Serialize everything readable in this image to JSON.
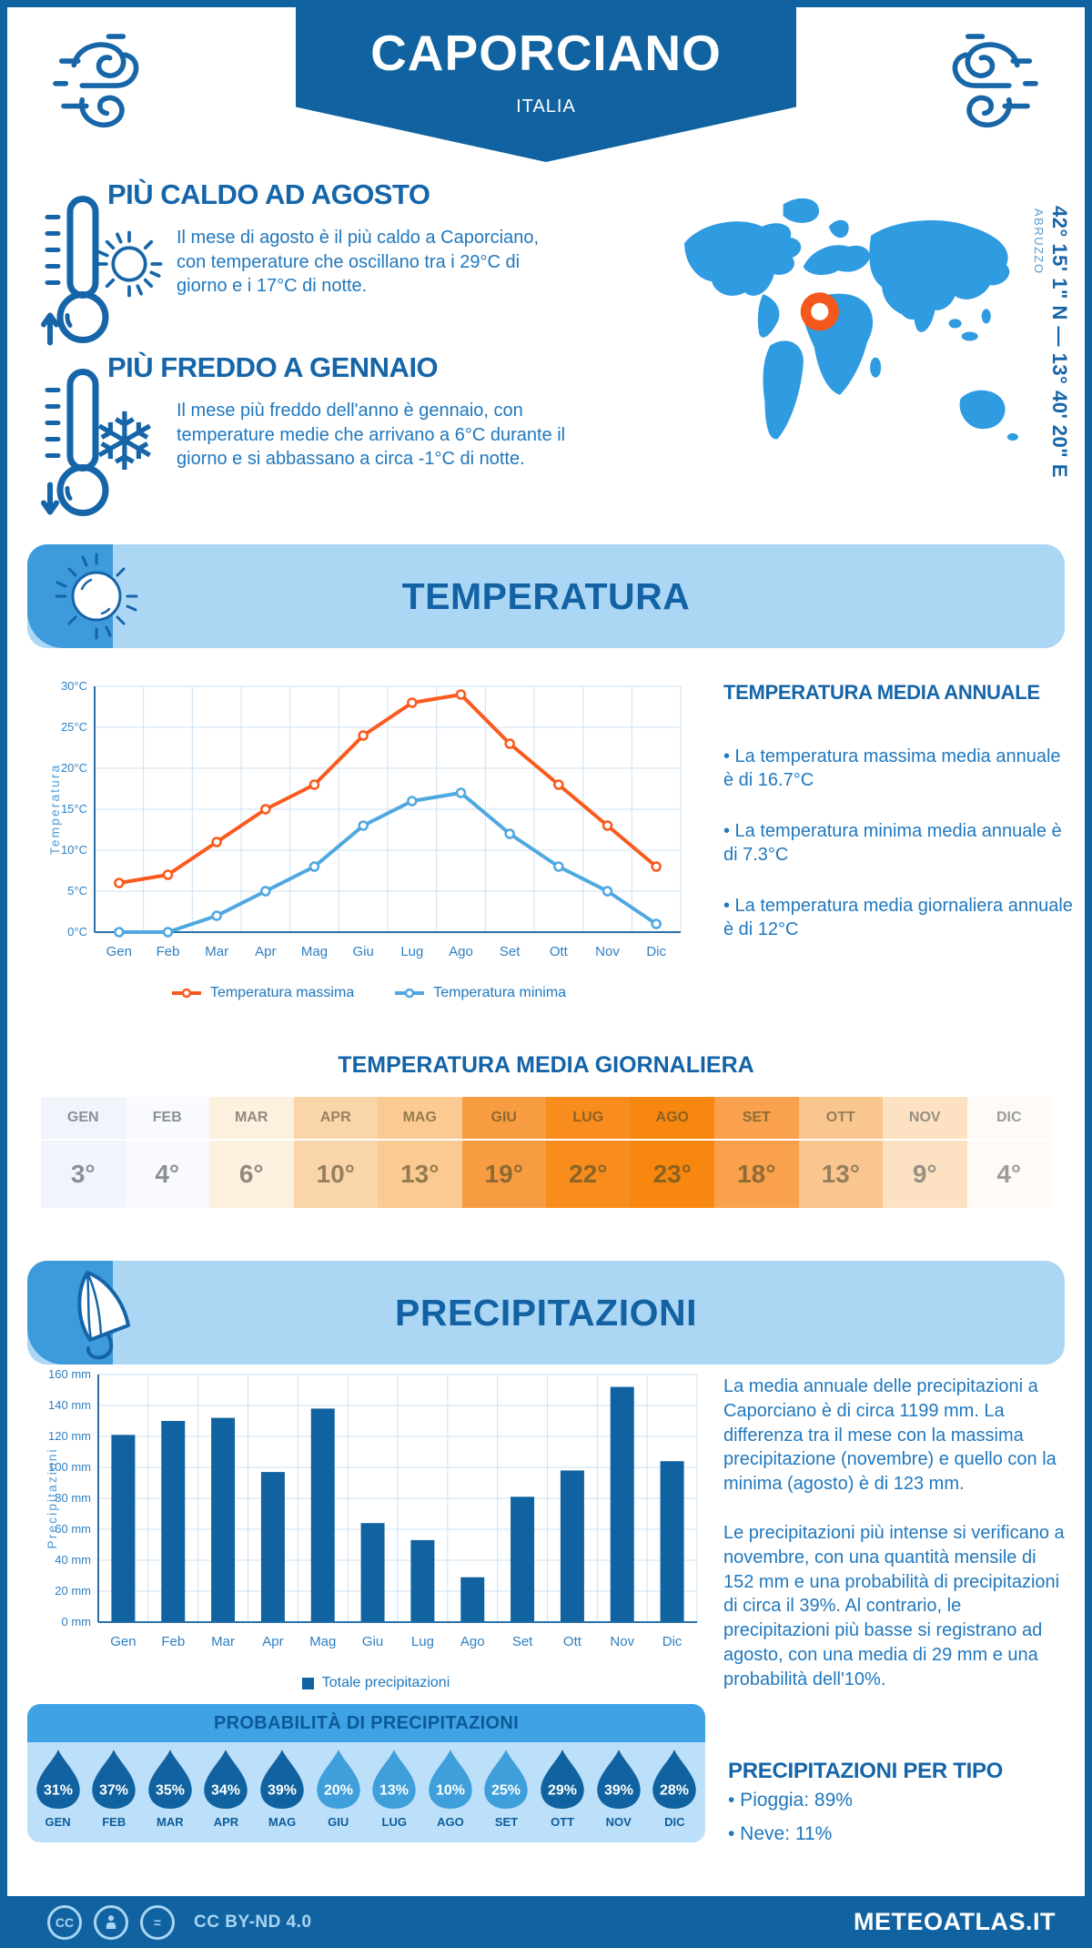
{
  "page": {
    "title": "CAPORCIANO",
    "subtitle": "ITALIA"
  },
  "location": {
    "coordinates": "42° 15' 1\" N — 13° 40' 20\" E",
    "region": "ABRUZZO"
  },
  "highlights": {
    "hot": {
      "title": "PIÙ CALDO AD AGOSTO",
      "text": "Il mese di agosto è il più caldo a Caporciano, con temperature che oscillano tra i 29°C di giorno e i 17°C di notte."
    },
    "cold": {
      "title": "PIÙ FREDDO A GENNAIO",
      "text": "Il mese più freddo dell'anno è gennaio, con temperature medie che arrivano a 6°C durante il giorno e si abbassano a circa -1°C di notte."
    }
  },
  "sections": {
    "temperature": "TEMPERATURA",
    "precipitation": "PRECIPITAZIONI"
  },
  "annual": {
    "title": "TEMPERATURA MEDIA ANNUALE",
    "bullets": [
      "• La temperatura massima media annuale è di 16.7°C",
      "• La temperatura minima media annuale è di 7.3°C",
      "• La temperatura media giornaliera annuale è di 12°C"
    ]
  },
  "precip_text": {
    "p1": "La media annuale delle precipitazioni a Caporciano è di circa 1199 mm. La differenza tra il mese con la massima precipitazione (novembre) e quello con la minima (agosto) è di 123 mm.",
    "p2": "Le precipitazioni più intense si verificano a novembre, con una quantità mensile di 152 mm e una probabilità di precipitazioni di circa il 39%. Al contrario, le precipitazioni più basse si registrano ad agosto, con una media di 29 mm e una probabilità dell'10%."
  },
  "tipo": {
    "title": "PRECIPITAZIONI PER TIPO",
    "bullets": [
      "• Pioggia: 89%",
      "• Neve: 11%"
    ]
  },
  "footer": {
    "license": "CC BY-ND 4.0",
    "site": "METEOATLAS.IT"
  },
  "colors": {
    "dark_blue": "#1063A0",
    "heading_blue": "#1565A8",
    "body_blue": "#2078BE",
    "banner_light": "#ABD7F5",
    "map_blue": "#2F9BE1",
    "marker_orange": "#F4581C",
    "max_line": "#FA5A1E",
    "min_line": "#4FA8E0",
    "grid": "#CDE1F3",
    "axis": "#2A6FA8",
    "tick_label": "#2E7FC2",
    "prob_header": "#3EA2E5",
    "prob_body": "#BCE0FA",
    "drop_dark": "#1063A0",
    "drop_light": "#3E9FDB"
  },
  "chart_data": [
    {
      "type": "line",
      "title": "TEMPERATURA",
      "ylabel": "Temperatura",
      "categories": [
        "Gen",
        "Feb",
        "Mar",
        "Apr",
        "Mag",
        "Giu",
        "Lug",
        "Ago",
        "Set",
        "Ott",
        "Nov",
        "Dic"
      ],
      "series": [
        {
          "name": "Temperatura massima",
          "color": "#FA5A1E",
          "values": [
            6,
            7,
            11,
            15,
            18,
            24,
            28,
            29,
            23,
            18,
            13,
            8
          ]
        },
        {
          "name": "Temperatura minima",
          "color": "#4FA8E0",
          "values": [
            0,
            0,
            2,
            5,
            8,
            13,
            16,
            17,
            12,
            8,
            5,
            1
          ]
        }
      ],
      "ylim": [
        0,
        30
      ],
      "ystep": 5,
      "ytick_suffix": "°C",
      "grid": true,
      "legend_position": "bottom"
    },
    {
      "type": "table",
      "title": "TEMPERATURA MEDIA GIORNALIERA",
      "categories": [
        "GEN",
        "FEB",
        "MAR",
        "APR",
        "MAG",
        "GIU",
        "LUG",
        "AGO",
        "SET",
        "OTT",
        "NOV",
        "DIC"
      ],
      "values": [
        3,
        4,
        6,
        10,
        13,
        19,
        22,
        23,
        18,
        13,
        9,
        4
      ],
      "value_suffix": "°",
      "cell_colors": [
        "#F2F4FB",
        "#F8FAFE",
        "#FCF0DF",
        "#FBD5AA",
        "#FACA92",
        "#F89C42",
        "#F88C1D",
        "#F8870F",
        "#F9A14C",
        "#FAC68F",
        "#FCE2C3",
        "#FDFAF7"
      ],
      "text_colors": [
        "#8C8F96",
        "#8C8F96",
        "#928A80",
        "#96815F",
        "#967B4E",
        "#8F6A33",
        "#8C6426",
        "#8C6220",
        "#8F6C35",
        "#95805C",
        "#979083",
        "#9C9C9C"
      ]
    },
    {
      "type": "bar",
      "title": "PRECIPITAZIONI",
      "ylabel": "Precipitazioni",
      "categories": [
        "Gen",
        "Feb",
        "Mar",
        "Apr",
        "Mag",
        "Giu",
        "Lug",
        "Ago",
        "Set",
        "Ott",
        "Nov",
        "Dic"
      ],
      "values": [
        121,
        130,
        132,
        97,
        138,
        64,
        53,
        29,
        81,
        98,
        152,
        104
      ],
      "ylim": [
        0,
        160
      ],
      "ystep": 20,
      "ytick_suffix": " mm",
      "grid": true,
      "legend": "Totale precipitazioni",
      "bar_color": "#1063A0",
      "legend_position": "bottom"
    },
    {
      "type": "pictogram",
      "title": "PROBABILITÀ DI PRECIPITAZIONI",
      "categories": [
        "GEN",
        "FEB",
        "MAR",
        "APR",
        "MAG",
        "GIU",
        "LUG",
        "AGO",
        "SET",
        "OTT",
        "NOV",
        "DIC"
      ],
      "values": [
        31,
        37,
        35,
        34,
        39,
        20,
        13,
        10,
        25,
        29,
        39,
        28
      ],
      "value_suffix": "%",
      "drop_styles": [
        "dark",
        "dark",
        "dark",
        "dark",
        "dark",
        "light",
        "light",
        "light",
        "light",
        "dark",
        "dark",
        "dark"
      ]
    }
  ]
}
